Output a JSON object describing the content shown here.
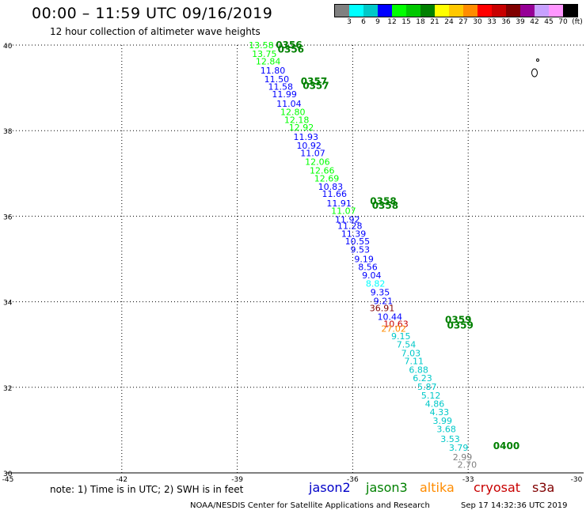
{
  "header": {
    "title": "00:00 – 11:59 UTC 09/16/2019",
    "subtitle": "12 hour collection of altimeter wave heights"
  },
  "colorbar": {
    "labels": [
      "3",
      "6",
      "9",
      "12",
      "15",
      "18",
      "21",
      "24",
      "27",
      "30",
      "33",
      "36",
      "39",
      "42",
      "45",
      "70",
      "(ft)"
    ],
    "colors": [
      "#808080",
      "#00ffff",
      "#00c8c8",
      "#0000ff",
      "#00ff00",
      "#00c800",
      "#008000",
      "#ffff00",
      "#ffc800",
      "#ff8c00",
      "#ff0000",
      "#c80000",
      "#800000",
      "#960096",
      "#c8a0ff",
      "#ff96ff",
      "#000000"
    ]
  },
  "footer": {
    "note": "note: 1) Time is in UTC; 2) SWH is in feet",
    "credit": "NOAA/NESDIS Center for Satellite Applications and Research",
    "generated": "Sep 17 14:32:36 UTC 2019"
  },
  "legend": [
    {
      "name": "jason2",
      "color": "#0000c8"
    },
    {
      "name": "jason3",
      "color": "#008000"
    },
    {
      "name": "altika",
      "color": "#ff8c00"
    },
    {
      "name": "cryosat",
      "color": "#c80000"
    },
    {
      "name": "s3a",
      "color": "#800000"
    }
  ],
  "axes": {
    "x_ticks": [
      "-45",
      "-42",
      "-39",
      "-36",
      "-33",
      "-30"
    ],
    "y_ticks": [
      "30",
      "32",
      "34",
      "36",
      "38",
      "40"
    ],
    "lon_range": [
      -45,
      -30
    ],
    "lat_range": [
      30,
      40
    ]
  },
  "chart_data": {
    "type": "scatter",
    "xlabel": "",
    "ylabel": "",
    "grid": true,
    "time_labels": [
      {
        "text": "0356",
        "lon": -38.0,
        "lat": 39.93,
        "color": "#008000"
      },
      {
        "text": "0356",
        "lon": -37.95,
        "lat": 39.82,
        "color": "#008000"
      },
      {
        "text": "0357",
        "lon": -37.35,
        "lat": 39.08,
        "color": "#008000"
      },
      {
        "text": "0357",
        "lon": -37.3,
        "lat": 38.97,
        "color": "#008000"
      },
      {
        "text": "0358",
        "lon": -35.55,
        "lat": 36.28,
        "color": "#008000"
      },
      {
        "text": "0358",
        "lon": -35.5,
        "lat": 36.17,
        "color": "#008000"
      },
      {
        "text": "0359",
        "lon": -33.6,
        "lat": 33.5,
        "color": "#008000"
      },
      {
        "text": "0359",
        "lon": -33.55,
        "lat": 33.37,
        "color": "#008000"
      },
      {
        "text": "0400",
        "lon": -32.35,
        "lat": 30.55,
        "color": "#008000"
      }
    ],
    "points": [
      {
        "swh": "13.58",
        "lon": -38.7,
        "lat": 39.93,
        "color": "#00ff00"
      },
      {
        "swh": "13.75",
        "lon": -38.62,
        "lat": 39.72,
        "color": "#00ff00"
      },
      {
        "swh": "12.84",
        "lon": -38.52,
        "lat": 39.55,
        "color": "#00ff00"
      },
      {
        "swh": "11.80",
        "lon": -38.4,
        "lat": 39.33,
        "color": "#0000ff"
      },
      {
        "swh": "11.50",
        "lon": -38.3,
        "lat": 39.13,
        "color": "#0000ff"
      },
      {
        "swh": "11.58",
        "lon": -38.2,
        "lat": 38.96,
        "color": "#0000ff"
      },
      {
        "swh": "11.99",
        "lon": -38.1,
        "lat": 38.78,
        "color": "#0000ff"
      },
      {
        "swh": "11.04",
        "lon": -37.98,
        "lat": 38.56,
        "color": "#0000ff"
      },
      {
        "swh": "12.80",
        "lon": -37.88,
        "lat": 38.36,
        "color": "#00ff00"
      },
      {
        "swh": "12.18",
        "lon": -37.78,
        "lat": 38.18,
        "color": "#00ff00"
      },
      {
        "swh": "12.92",
        "lon": -37.66,
        "lat": 38.0,
        "color": "#00ff00"
      },
      {
        "swh": "11.93",
        "lon": -37.54,
        "lat": 37.78,
        "color": "#0000ff"
      },
      {
        "swh": "10.92",
        "lon": -37.46,
        "lat": 37.58,
        "color": "#0000ff"
      },
      {
        "swh": "11.07",
        "lon": -37.36,
        "lat": 37.4,
        "color": "#0000ff"
      },
      {
        "swh": "12.06",
        "lon": -37.24,
        "lat": 37.2,
        "color": "#00ff00"
      },
      {
        "swh": "12.66",
        "lon": -37.12,
        "lat": 37.0,
        "color": "#00ff00"
      },
      {
        "swh": "12.69",
        "lon": -37.0,
        "lat": 36.81,
        "color": "#00ff00"
      },
      {
        "swh": "10.83",
        "lon": -36.9,
        "lat": 36.62,
        "color": "#0000ff"
      },
      {
        "swh": "11.66",
        "lon": -36.8,
        "lat": 36.45,
        "color": "#0000ff"
      },
      {
        "swh": "11.91",
        "lon": -36.68,
        "lat": 36.23,
        "color": "#0000ff"
      },
      {
        "swh": "11.07",
        "lon": -36.56,
        "lat": 36.05,
        "color": "#00ff00"
      },
      {
        "swh": "11.92",
        "lon": -36.46,
        "lat": 35.85,
        "color": "#0000ff"
      },
      {
        "swh": "11.28",
        "lon": -36.4,
        "lat": 35.7,
        "color": "#0000ff"
      },
      {
        "swh": "11.39",
        "lon": -36.3,
        "lat": 35.52,
        "color": "#0000ff"
      },
      {
        "swh": "10.55",
        "lon": -36.2,
        "lat": 35.34,
        "color": "#0000ff"
      },
      {
        "swh": "9.53",
        "lon": -36.06,
        "lat": 35.15,
        "color": "#0000ff"
      },
      {
        "swh": "9.19",
        "lon": -35.96,
        "lat": 34.93,
        "color": "#0000ff"
      },
      {
        "swh": "8.56",
        "lon": -35.86,
        "lat": 34.74,
        "color": "#0000ff"
      },
      {
        "swh": "9.04",
        "lon": -35.76,
        "lat": 34.55,
        "color": "#0000ff"
      },
      {
        "swh": "8.82",
        "lon": -35.66,
        "lat": 34.35,
        "color": "#00ffff"
      },
      {
        "swh": "9.35",
        "lon": -35.54,
        "lat": 34.15,
        "color": "#0000ff"
      },
      {
        "swh": "9.21",
        "lon": -35.46,
        "lat": 33.95,
        "color": "#0000ff"
      },
      {
        "swh": "36.91",
        "lon": -35.56,
        "lat": 33.78,
        "color": "#800000"
      },
      {
        "swh": "10.44",
        "lon": -35.36,
        "lat": 33.58,
        "color": "#0000ff"
      },
      {
        "swh": "10.63",
        "lon": -35.2,
        "lat": 33.41,
        "color": "#c80000"
      },
      {
        "swh": "27.02",
        "lon": -35.26,
        "lat": 33.3,
        "color": "#ff8c00"
      },
      {
        "swh": "9.15",
        "lon": -35.0,
        "lat": 33.12,
        "color": "#00c8c8"
      },
      {
        "swh": "7.54",
        "lon": -34.86,
        "lat": 32.93,
        "color": "#00c8c8"
      },
      {
        "swh": "7.03",
        "lon": -34.74,
        "lat": 32.73,
        "color": "#00c8c8"
      },
      {
        "swh": "7.11",
        "lon": -34.66,
        "lat": 32.54,
        "color": "#00c8c8"
      },
      {
        "swh": "6.88",
        "lon": -34.54,
        "lat": 32.34,
        "color": "#00c8c8"
      },
      {
        "swh": "6.23",
        "lon": -34.44,
        "lat": 32.14,
        "color": "#00c8c8"
      },
      {
        "swh": "5.87",
        "lon": -34.32,
        "lat": 31.94,
        "color": "#00c8c8"
      },
      {
        "swh": "5.12",
        "lon": -34.22,
        "lat": 31.74,
        "color": "#00c8c8"
      },
      {
        "swh": "4.86",
        "lon": -34.12,
        "lat": 31.54,
        "color": "#00c8c8"
      },
      {
        "swh": "4.33",
        "lon": -34.0,
        "lat": 31.35,
        "color": "#00c8c8"
      },
      {
        "swh": "3.99",
        "lon": -33.92,
        "lat": 31.15,
        "color": "#00c8c8"
      },
      {
        "swh": "3.68",
        "lon": -33.82,
        "lat": 30.95,
        "color": "#00c8c8"
      },
      {
        "swh": "3.53",
        "lon": -33.72,
        "lat": 30.72,
        "color": "#00c8c8"
      },
      {
        "swh": "3.79",
        "lon": -33.5,
        "lat": 30.52,
        "color": "#00c8c8"
      },
      {
        "swh": "2.99",
        "lon": -33.4,
        "lat": 30.3,
        "color": "#808080"
      },
      {
        "swh": "2.70",
        "lon": -33.28,
        "lat": 30.12,
        "color": "#808080"
      }
    ]
  }
}
